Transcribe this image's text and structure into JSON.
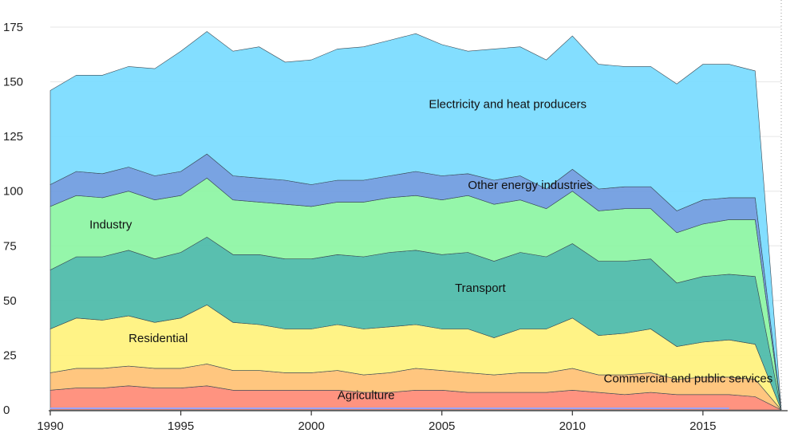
{
  "chart_data": {
    "type": "area",
    "stacked": true,
    "x": [
      1990,
      1991,
      1992,
      1993,
      1994,
      1995,
      1996,
      1997,
      1998,
      1999,
      2000,
      2001,
      2002,
      2003,
      2004,
      2005,
      2006,
      2007,
      2008,
      2009,
      2010,
      2011,
      2012,
      2013,
      2014,
      2015,
      2016,
      2017,
      2018
    ],
    "xticks": [
      1990,
      1995,
      2000,
      2005,
      2010,
      2015
    ],
    "yticks": [
      0,
      25,
      50,
      75,
      100,
      125,
      150,
      175
    ],
    "ylim": [
      0,
      175
    ],
    "xlim": [
      1990,
      2018
    ],
    "series": [
      {
        "name": "Agriculture",
        "color": "#ff8a75",
        "values": [
          9,
          10,
          10,
          11,
          10,
          10,
          11,
          9,
          9,
          9,
          9,
          9,
          8,
          8,
          9,
          9,
          8,
          8,
          8,
          8,
          9,
          8,
          7,
          8,
          7,
          7,
          7,
          6,
          0
        ]
      },
      {
        "name": "Commercial and public services",
        "color": "#ffc174",
        "values": [
          8,
          9,
          9,
          9,
          9,
          9,
          10,
          9,
          9,
          8,
          8,
          9,
          8,
          9,
          10,
          9,
          9,
          8,
          9,
          9,
          10,
          8,
          9,
          9,
          7,
          8,
          8,
          8,
          0
        ]
      },
      {
        "name": "Residential",
        "color": "#fff27c",
        "values": [
          20,
          23,
          22,
          23,
          21,
          23,
          27,
          22,
          21,
          20,
          20,
          21,
          21,
          21,
          20,
          19,
          20,
          17,
          20,
          20,
          23,
          18,
          19,
          20,
          15,
          16,
          17,
          16,
          0
        ]
      },
      {
        "name": "Transport",
        "color": "#4bbaa8",
        "values": [
          27,
          28,
          29,
          30,
          29,
          30,
          31,
          31,
          32,
          32,
          32,
          32,
          33,
          34,
          34,
          34,
          35,
          35,
          35,
          33,
          34,
          34,
          33,
          32,
          29,
          30,
          30,
          31,
          0
        ]
      },
      {
        "name": "Industry",
        "color": "#8cf5a3",
        "values": [
          29,
          28,
          27,
          27,
          27,
          26,
          27,
          25,
          24,
          25,
          24,
          24,
          25,
          25,
          25,
          25,
          26,
          26,
          24,
          22,
          24,
          23,
          24,
          23,
          23,
          24,
          25,
          26,
          0
        ]
      },
      {
        "name": "Other energy industries",
        "color": "#6e9be0",
        "values": [
          10,
          11,
          11,
          11,
          11,
          11,
          11,
          11,
          11,
          11,
          10,
          10,
          10,
          10,
          11,
          11,
          10,
          11,
          11,
          9,
          10,
          10,
          10,
          10,
          10,
          11,
          10,
          10,
          0
        ]
      },
      {
        "name": "Electricity and heat producers",
        "color": "#78dbff",
        "values": [
          43,
          44,
          45,
          46,
          49,
          55,
          56,
          57,
          60,
          54,
          57,
          60,
          61,
          62,
          63,
          60,
          56,
          60,
          59,
          59,
          61,
          57,
          55,
          55,
          58,
          62,
          61,
          58,
          0
        ]
      }
    ],
    "series_labels": [
      {
        "name": "Agriculture",
        "text": "Agriculture",
        "x": 2001.0,
        "y": 5
      },
      {
        "name": "Commercial and public services",
        "text": "Commercial and public services",
        "x": 2011.2,
        "y": 12.5
      },
      {
        "name": "Residential",
        "text": "Residential",
        "x": 1993.0,
        "y": 31
      },
      {
        "name": "Transport",
        "text": "Transport",
        "x": 2005.5,
        "y": 54
      },
      {
        "name": "Industry",
        "text": "Industry",
        "x": 1991.5,
        "y": 83
      },
      {
        "name": "Other energy industries",
        "text": "Other energy industries",
        "x": 2006.0,
        "y": 101
      },
      {
        "name": "Electricity and heat producers",
        "text": "Electricity and heat producers",
        "x": 2004.5,
        "y": 138
      }
    ],
    "title": "",
    "xlabel": "",
    "ylabel": "",
    "grid": true
  }
}
